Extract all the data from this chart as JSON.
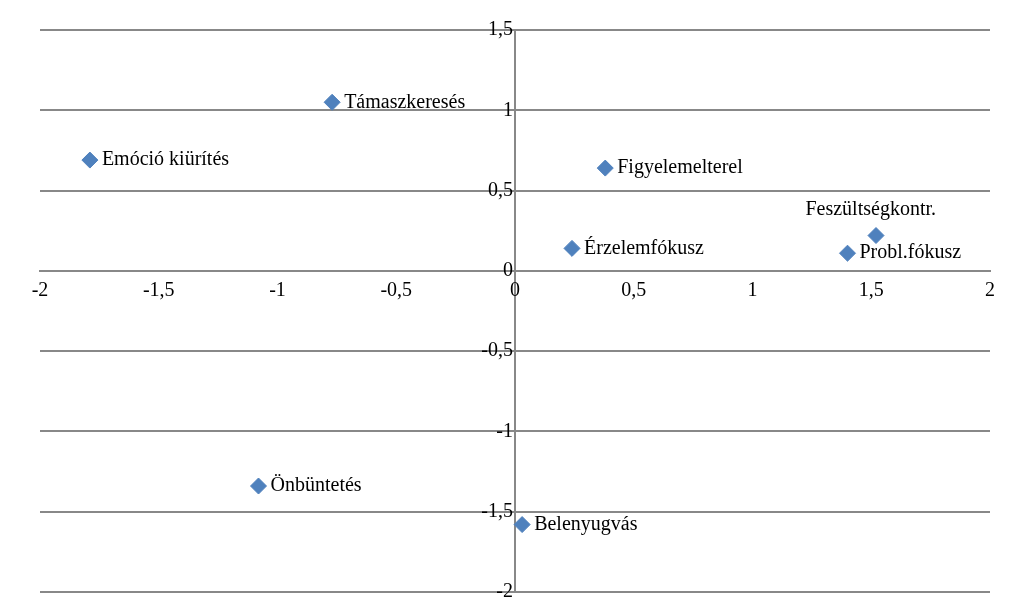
{
  "chart_data": {
    "type": "scatter",
    "marker": "diamond",
    "grid": "y",
    "series": [
      {
        "color": "#4f81bd",
        "x": [
          -0.77,
          -1.79,
          0.38,
          1.52,
          1.4,
          0.24,
          -1.08,
          0.03
        ],
        "values": [
          1.05,
          0.69,
          0.64,
          0.22,
          0.11,
          0.14,
          -1.34,
          -1.58
        ]
      }
    ],
    "xlim": [
      -2,
      2
    ],
    "xticks": [
      -2,
      {
        "value": -1.5,
        "label": "-1,5"
      },
      -1,
      {
        "value": -0.5,
        "label": "-0,5"
      },
      0,
      {
        "value": 0.5,
        "label": "0,5"
      },
      1,
      {
        "value": 1.5,
        "label": "1,5"
      },
      2
    ],
    "ylim": [
      -2,
      1.5
    ],
    "yticks": [
      -2,
      {
        "value": -1.5,
        "label": "-1,5"
      },
      -1,
      {
        "value": -0.5,
        "label": "-0,5"
      },
      0,
      {
        "value": 0.5,
        "label": "0,5"
      },
      1,
      {
        "value": 1.5,
        "label": "1,5"
      }
    ],
    "annotations": [
      {
        "text": "Támaszkeresés",
        "x": -0.77,
        "y": 1.05
      },
      {
        "text": "Emóció kiürítés",
        "x": -1.79,
        "y": 0.69
      },
      {
        "text": "Figyelemelterel",
        "x": 0.38,
        "y": 0.64
      },
      {
        "text": "Feszültségkontr.",
        "x": 1.52,
        "y": 0.22
      },
      {
        "text": "Probl.fókusz",
        "x": 1.4,
        "y": 0.11
      },
      {
        "text": "Érzelemfókusz",
        "x": 0.24,
        "y": 0.14
      },
      {
        "text": "Önbüntetés",
        "x": -1.08,
        "y": -1.34
      },
      {
        "text": "Belenyugvás",
        "x": 0.03,
        "y": -1.58
      }
    ]
  }
}
